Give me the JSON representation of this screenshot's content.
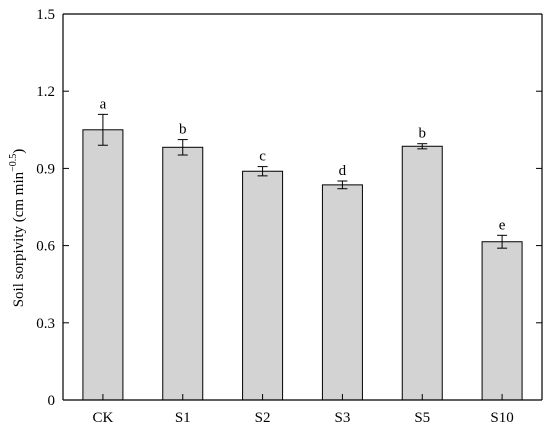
{
  "chart_data": {
    "type": "bar",
    "categories": [
      "CK",
      "S1",
      "S2",
      "S3",
      "S5",
      "S10"
    ],
    "values": [
      1.05,
      0.982,
      0.889,
      0.836,
      0.986,
      0.615
    ],
    "errors": [
      0.06,
      0.03,
      0.018,
      0.015,
      0.01,
      0.025
    ],
    "significance": [
      "a",
      "b",
      "c",
      "d",
      "b",
      "e"
    ],
    "ylabel": {
      "main": "Soil sorpivity (cm min",
      "superscript": "−0.5",
      "close": ")"
    },
    "ylim": [
      0,
      1.5
    ],
    "yticks": [
      0,
      0.3,
      0.6,
      0.9,
      1.2,
      1.5
    ],
    "ytick_labels": [
      "0",
      "0.3",
      "0.6",
      "0.9",
      "1.2",
      "1.5"
    ],
    "bar_color": "#d3d3d3",
    "grid": false,
    "legend": "none"
  }
}
